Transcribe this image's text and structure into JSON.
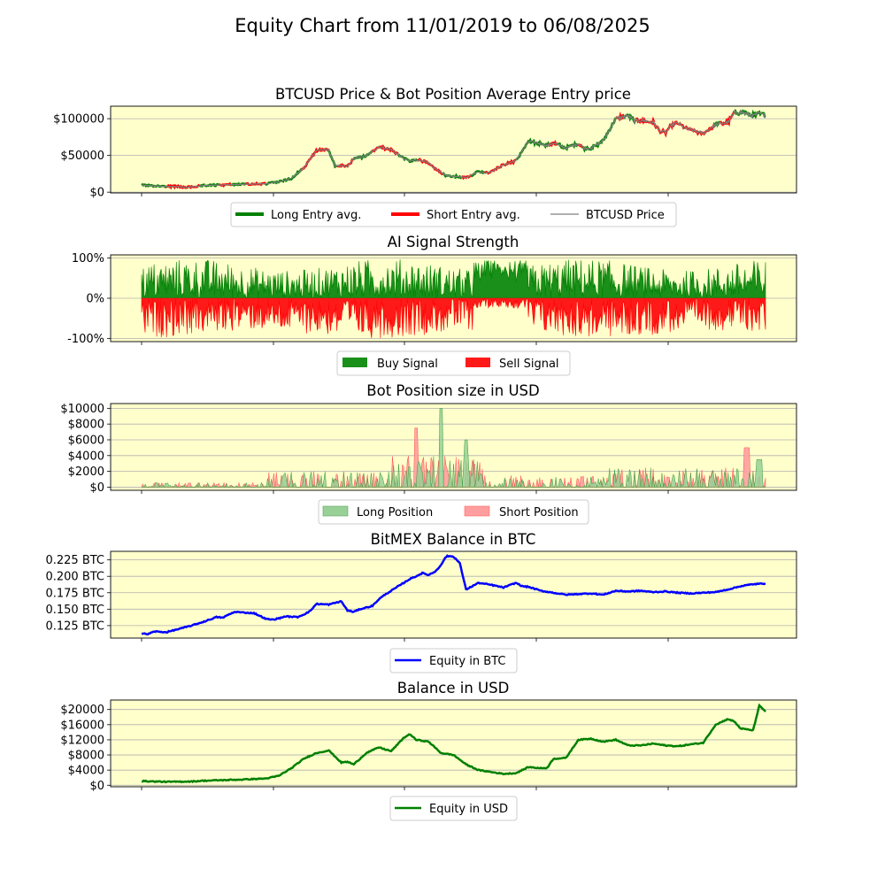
{
  "title": "Equity Chart from 11/01/2019 to 06/08/2025",
  "colors": {
    "panel_bg": "#ffffcc",
    "grid": "#b0b0b0",
    "long": "#008000",
    "short": "#ff0000",
    "price": "#808080",
    "btc_equity": "#0000ff",
    "usd_equity": "#008000",
    "long_fill": "#98d098",
    "short_fill": "#ff9e9e"
  },
  "chart_data": [
    {
      "type": "line",
      "title": "BTCUSD Price & Bot Position Average Entry price",
      "yticks": [
        0,
        50000,
        100000
      ],
      "ytick_labels": [
        "$0",
        "$50000",
        "$100000"
      ],
      "ylim": [
        -1000,
        117000
      ],
      "grid": "y",
      "legend_position": "bottom-center",
      "legend": [
        "Long Entry avg.",
        "Short Entry avg.",
        "BTCUSD Price"
      ],
      "series": [
        {
          "name": "BTCUSD Price",
          "x": [
            0,
            0.03,
            0.06,
            0.07,
            0.1,
            0.15,
            0.2,
            0.22,
            0.24,
            0.26,
            0.27,
            0.28,
            0.29,
            0.3,
            0.31,
            0.33,
            0.34,
            0.36,
            0.38,
            0.4,
            0.42,
            0.43,
            0.44,
            0.45,
            0.46,
            0.47,
            0.49,
            0.51,
            0.52,
            0.53,
            0.54,
            0.55,
            0.56,
            0.58,
            0.6,
            0.62,
            0.64,
            0.65,
            0.66,
            0.68,
            0.7,
            0.71,
            0.72,
            0.74,
            0.76,
            0.78,
            0.79,
            0.8,
            0.82,
            0.83,
            0.84,
            0.85,
            0.86,
            0.87,
            0.9,
            0.92,
            0.94,
            0.95,
            0.96,
            0.98,
            0.99,
            1.0
          ],
          "values": [
            9500,
            8000,
            7500,
            6500,
            9000,
            10500,
            11500,
            14000,
            19000,
            33000,
            45000,
            57000,
            58000,
            57000,
            36000,
            35000,
            46000,
            49000,
            62000,
            58000,
            46000,
            42000,
            44000,
            43000,
            39000,
            32000,
            22000,
            21000,
            20000,
            24000,
            28000,
            26000,
            28000,
            37000,
            43000,
            69000,
            66000,
            63000,
            67000,
            60000,
            66000,
            60000,
            60000,
            70000,
            100000,
            104000,
            97000,
            98000,
            95000,
            84000,
            81000,
            92000,
            94000,
            87000,
            80000,
            92000,
            95000,
            108000,
            109000,
            104000,
            107000,
            104000
          ]
        }
      ]
    },
    {
      "type": "area",
      "title": "AI Signal Strength",
      "yticks": [
        -100,
        0,
        100
      ],
      "ytick_labels": [
        "-100%",
        "0%",
        "100%"
      ],
      "ylim": [
        -108,
        108
      ],
      "grid": "y",
      "legend_position": "bottom-center",
      "legend": [
        "Buy Signal",
        "Sell Signal"
      ],
      "series": [
        {
          "name": "Buy Signal",
          "range": [
            0,
            100
          ]
        },
        {
          "name": "Sell Signal",
          "range": [
            -100,
            0
          ]
        }
      ]
    },
    {
      "type": "area",
      "title": "Bot Position size in USD",
      "yticks": [
        0,
        2000,
        4000,
        6000,
        8000,
        10000
      ],
      "ytick_labels": [
        "$0",
        "$2000",
        "$4000",
        "$6000",
        "$8000",
        "$10000"
      ],
      "ylim": [
        -400,
        10600
      ],
      "grid": "y",
      "legend_position": "bottom-center",
      "legend": [
        "Long Position",
        "Short Position"
      ],
      "series": [
        {
          "name": "Long Position",
          "max": 10000
        },
        {
          "name": "Short Position",
          "max": 7500
        }
      ]
    },
    {
      "type": "line",
      "title": "BitMEX Balance in BTC",
      "yticks": [
        0.125,
        0.15,
        0.175,
        0.2,
        0.225
      ],
      "ytick_labels": [
        "0.125 BTC",
        "0.150 BTC",
        "0.175 BTC",
        "0.200 BTC",
        "0.225 BTC"
      ],
      "ylim": [
        0.106,
        0.238
      ],
      "grid": "y",
      "legend_position": "bottom-center",
      "legend": [
        "Equity in BTC"
      ],
      "series": [
        {
          "name": "Equity in BTC",
          "x": [
            0,
            0.01,
            0.02,
            0.04,
            0.06,
            0.08,
            0.1,
            0.12,
            0.13,
            0.14,
            0.15,
            0.16,
            0.18,
            0.2,
            0.21,
            0.22,
            0.23,
            0.25,
            0.26,
            0.27,
            0.28,
            0.3,
            0.32,
            0.33,
            0.34,
            0.35,
            0.37,
            0.38,
            0.39,
            0.4,
            0.42,
            0.43,
            0.44,
            0.45,
            0.46,
            0.47,
            0.48,
            0.485,
            0.49,
            0.5,
            0.51,
            0.52,
            0.54,
            0.56,
            0.58,
            0.6,
            0.61,
            0.62,
            0.64,
            0.66,
            0.68,
            0.7,
            0.72,
            0.74,
            0.76,
            0.78,
            0.8,
            0.82,
            0.84,
            0.86,
            0.88,
            0.9,
            0.92,
            0.94,
            0.96,
            0.98,
            1.0
          ],
          "values": [
            0.113,
            0.112,
            0.116,
            0.115,
            0.12,
            0.125,
            0.131,
            0.138,
            0.137,
            0.142,
            0.146,
            0.145,
            0.144,
            0.135,
            0.134,
            0.136,
            0.139,
            0.138,
            0.142,
            0.147,
            0.158,
            0.157,
            0.162,
            0.148,
            0.146,
            0.15,
            0.155,
            0.165,
            0.172,
            0.178,
            0.19,
            0.196,
            0.2,
            0.205,
            0.202,
            0.207,
            0.217,
            0.226,
            0.231,
            0.23,
            0.22,
            0.18,
            0.19,
            0.187,
            0.183,
            0.19,
            0.185,
            0.184,
            0.178,
            0.175,
            0.172,
            0.173,
            0.174,
            0.172,
            0.178,
            0.177,
            0.178,
            0.176,
            0.177,
            0.175,
            0.174,
            0.175,
            0.176,
            0.18,
            0.185,
            0.188,
            0.189
          ]
        }
      ]
    },
    {
      "type": "line",
      "title": "Balance in USD",
      "yticks": [
        0,
        4000,
        8000,
        12000,
        16000,
        20000
      ],
      "ytick_labels": [
        "$0",
        "$4000",
        "$8000",
        "$12000",
        "$16000",
        "$20000"
      ],
      "ylim": [
        -400,
        22500
      ],
      "grid": "y",
      "legend_position": "bottom-center",
      "legend": [
        "Equity in USD"
      ],
      "series": [
        {
          "name": "Equity in USD",
          "x": [
            0,
            0.04,
            0.08,
            0.1,
            0.12,
            0.16,
            0.2,
            0.22,
            0.24,
            0.26,
            0.28,
            0.3,
            0.32,
            0.33,
            0.34,
            0.36,
            0.38,
            0.4,
            0.42,
            0.43,
            0.44,
            0.46,
            0.48,
            0.5,
            0.52,
            0.54,
            0.56,
            0.58,
            0.6,
            0.62,
            0.64,
            0.65,
            0.66,
            0.68,
            0.7,
            0.72,
            0.74,
            0.76,
            0.78,
            0.8,
            0.82,
            0.84,
            0.86,
            0.88,
            0.9,
            0.92,
            0.94,
            0.95,
            0.96,
            0.98,
            0.99,
            1.0
          ],
          "values": [
            1100,
            900,
            1000,
            1200,
            1300,
            1500,
            1800,
            2500,
            4500,
            7000,
            8500,
            9200,
            6000,
            6200,
            5500,
            8500,
            10000,
            9000,
            12500,
            13500,
            12000,
            11500,
            8500,
            8000,
            5500,
            4000,
            3500,
            3000,
            3200,
            4800,
            4500,
            4600,
            7000,
            7200,
            12000,
            12300,
            11500,
            12000,
            10500,
            10500,
            11000,
            10500,
            10300,
            10800,
            11200,
            16000,
            17500,
            16800,
            15000,
            14500,
            21000,
            19500
          ]
        }
      ]
    }
  ]
}
